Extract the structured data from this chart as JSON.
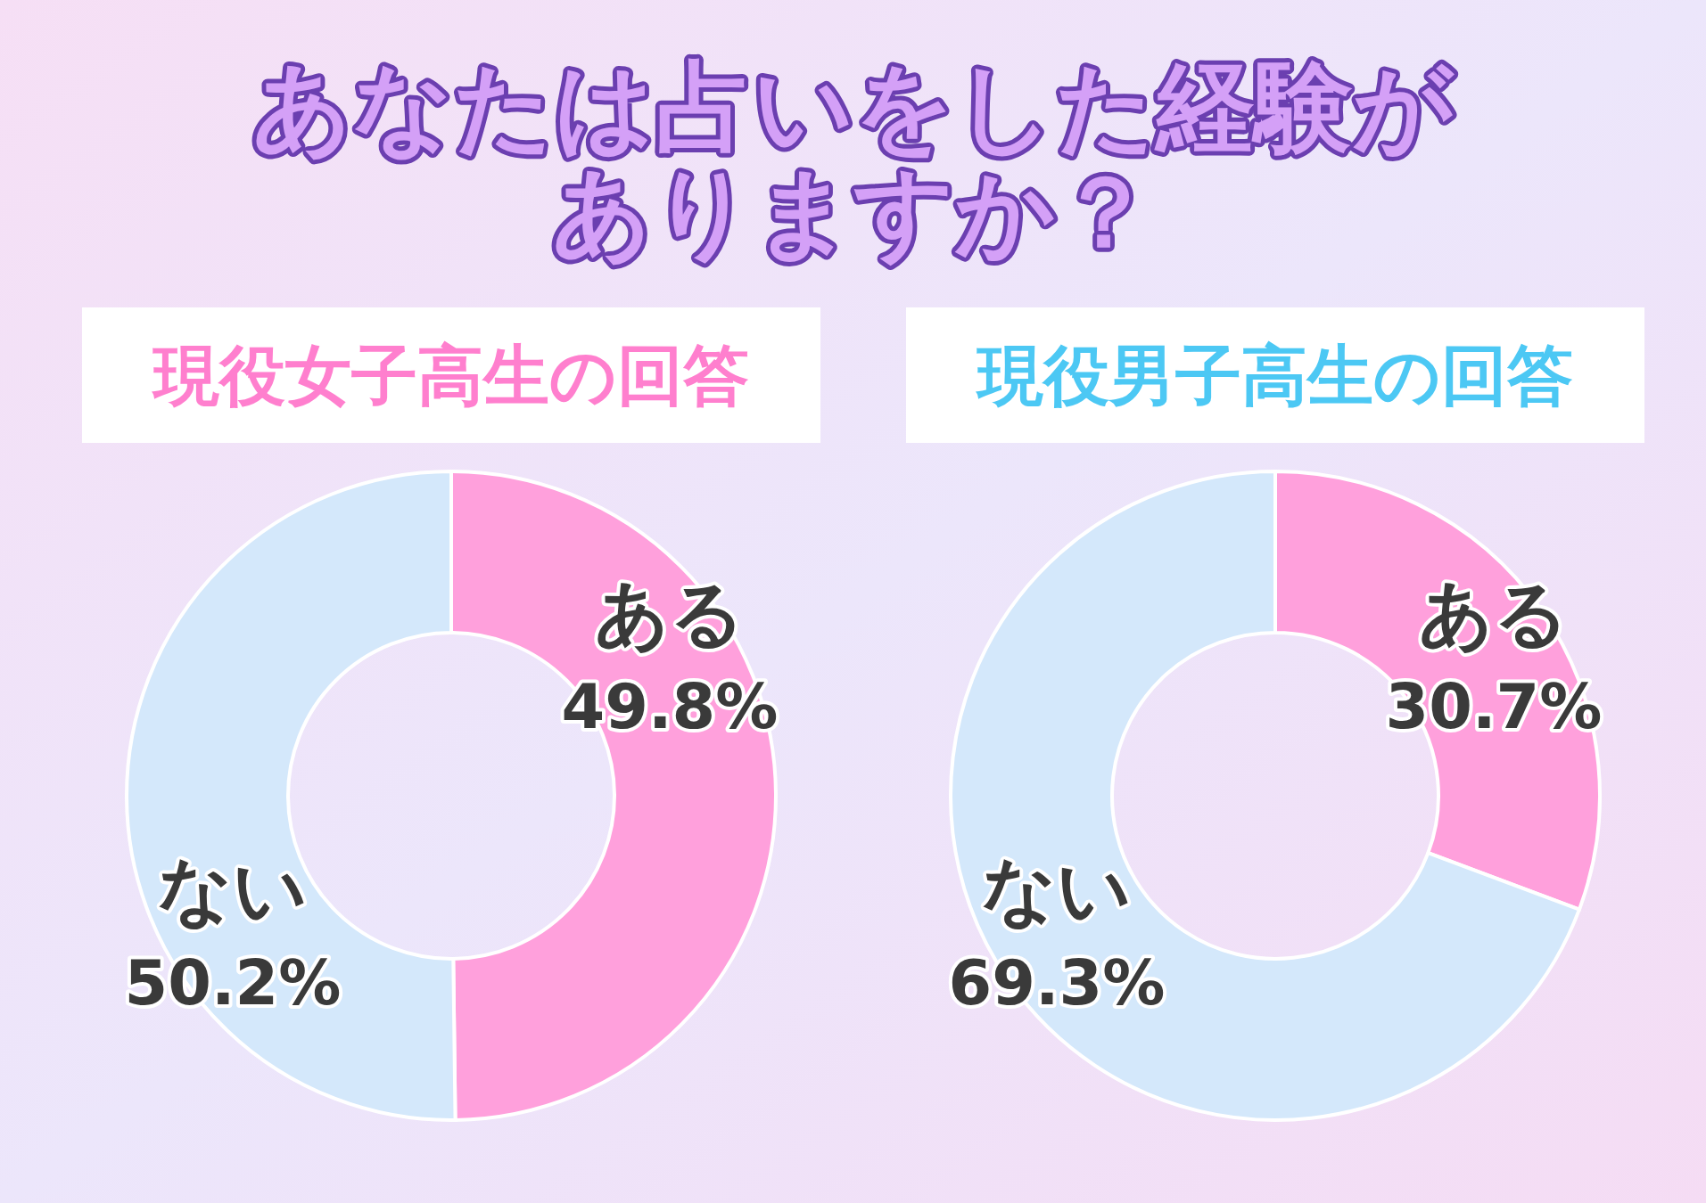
{
  "chart_data": [
    {
      "type": "donut",
      "annotations": [
        "あなたは占いをした経験がありますか？"
      ],
      "title": "現役女子高生の回答",
      "categories": [
        "ある",
        "ない"
      ],
      "values": [
        49.8,
        50.2
      ],
      "value_labels": [
        "49.8%",
        "50.2%"
      ],
      "colors": [
        "#ffa0dc",
        "#d4e8fb"
      ]
    },
    {
      "type": "donut",
      "title": "現役男子高生の回答",
      "categories": [
        "ある",
        "ない"
      ],
      "values": [
        30.7,
        69.3
      ],
      "value_labels": [
        "30.7%",
        "69.3%"
      ],
      "colors": [
        "#ffa0dc",
        "#d4e8fb"
      ]
    }
  ]
}
